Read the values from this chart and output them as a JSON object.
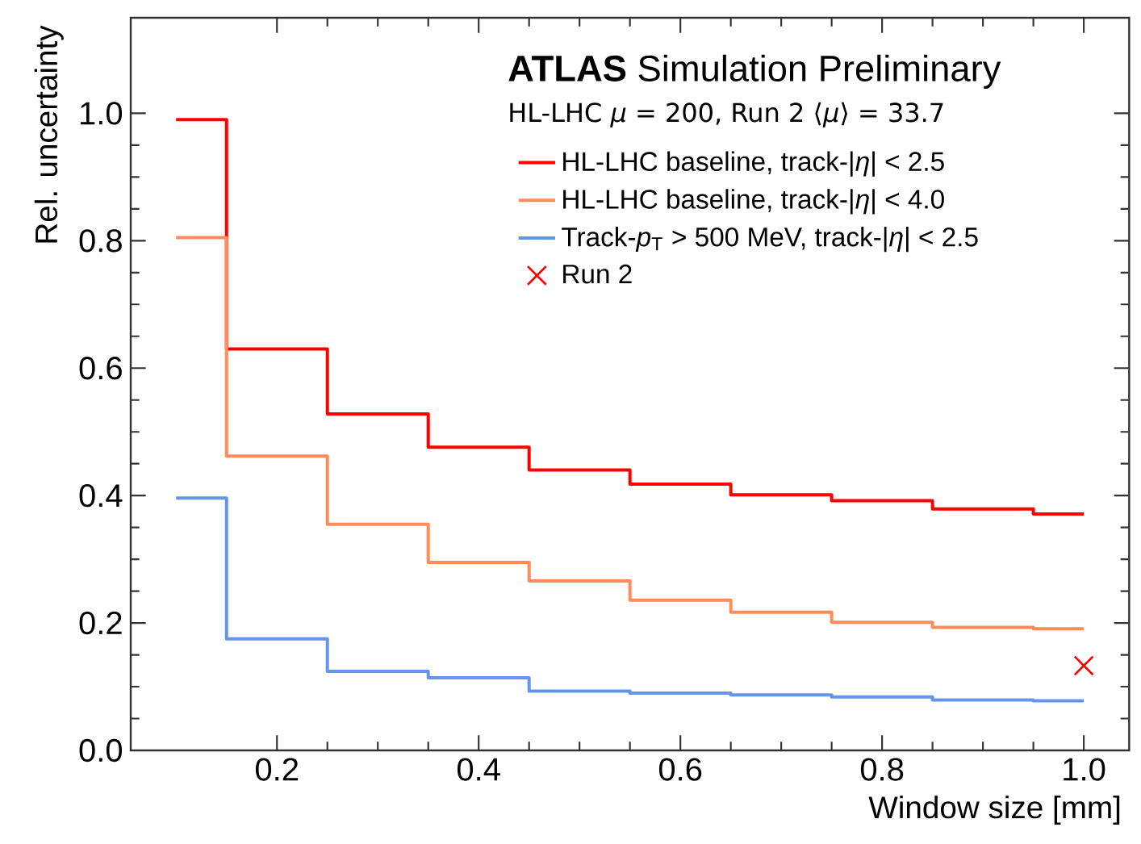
{
  "chart_data": {
    "type": "step",
    "title": "**ATLAS** Simulation Preliminary",
    "subtitle": "HL-LHC *μ* = 200, Run 2 ⟨*μ*⟩ = 33.7",
    "xlabel": "Window size [mm]",
    "ylabel": "Rel. uncertainty",
    "xlim": [
      0.055,
      1.045
    ],
    "ylim": [
      0,
      1.15
    ],
    "xticks": [
      {
        "value": 0.2,
        "label": "0.2"
      },
      {
        "value": 0.4,
        "label": "0.4"
      },
      {
        "value": 0.6,
        "label": "0.6"
      },
      {
        "value": 0.8,
        "label": "0.8"
      },
      {
        "value": 1.0,
        "label": "1.0"
      }
    ],
    "yticks": [
      {
        "value": 0,
        "label": "0.0"
      },
      {
        "value": 0.2,
        "label": "0.2"
      },
      {
        "value": 0.4,
        "label": "0.4"
      },
      {
        "value": 0.6,
        "label": "0.6"
      },
      {
        "value": 0.8,
        "label": "0.8"
      },
      {
        "value": 1.0,
        "label": "1.0"
      }
    ],
    "legend": "top right",
    "series": [
      {
        "name": "HL-LHC baseline, track-|*η*| < 2.5",
        "color": "#ff0000",
        "x": [
          0.1,
          0.15,
          0.25,
          0.35,
          0.45,
          0.55,
          0.65,
          0.75,
          0.85,
          0.95,
          1.0
        ],
        "values": [
          0.99,
          0.63,
          0.528,
          0.476,
          0.44,
          0.418,
          0.401,
          0.392,
          0.379,
          0.371,
          0.371
        ]
      },
      {
        "name": "HL-LHC baseline, track-|*η*| < 4.0",
        "color": "#ff8c5a",
        "x": [
          0.1,
          0.15,
          0.25,
          0.35,
          0.45,
          0.55,
          0.65,
          0.75,
          0.85,
          0.95,
          1.0
        ],
        "values": [
          0.805,
          0.462,
          0.355,
          0.295,
          0.266,
          0.236,
          0.217,
          0.201,
          0.193,
          0.191,
          0.191
        ]
      },
      {
        "name": "Track-*p*$_{T}$ > 500 MeV, track-|*η*| < 2.5",
        "color": "#6495ed",
        "x": [
          0.1,
          0.15,
          0.25,
          0.35,
          0.45,
          0.55,
          0.65,
          0.75,
          0.85,
          0.95,
          1.0
        ],
        "values": [
          0.396,
          0.175,
          0.124,
          0.114,
          0.093,
          0.09,
          0.087,
          0.084,
          0.079,
          0.078,
          0.078
        ]
      },
      {
        "name": "Run 2",
        "type": "scatter",
        "marker": "cross",
        "color": "#ff0000",
        "x": [
          1.0
        ],
        "values": [
          0.133
        ]
      }
    ]
  }
}
